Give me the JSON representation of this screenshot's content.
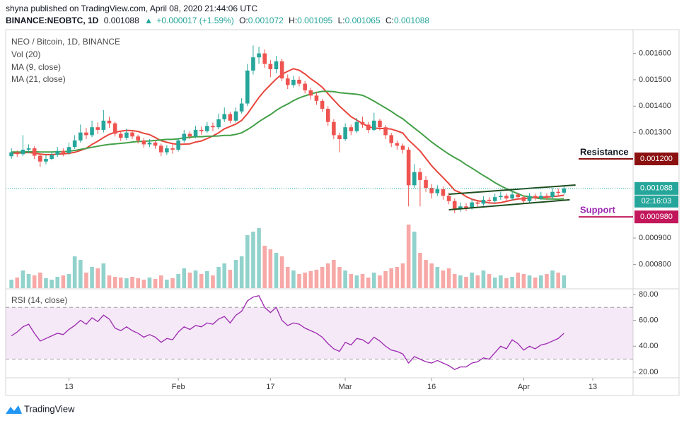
{
  "header": {
    "byline": "shyna published on TradingView.com, April 08, 2020 21:44:06 UTC",
    "symbol": "BINANCE:NEOBTC, 1D",
    "price": "0.001088",
    "arrow": "▲",
    "change": "+0.000017 (+1.59%)",
    "ohlc": [
      {
        "label": "O:",
        "value": "0.001072"
      },
      {
        "label": "H:",
        "value": "0.001095"
      },
      {
        "label": "L:",
        "value": "0.001065"
      },
      {
        "label": "C:",
        "value": "0.001088"
      }
    ]
  },
  "footer": {
    "brand": "TradingView"
  },
  "chart_data": {
    "type": "candlestick",
    "title": "NEO / Bitcoin, 1D, BINANCE",
    "x": [
      "2020-01-03",
      "2020-01-04",
      "2020-01-05",
      "2020-01-06",
      "2020-01-07",
      "2020-01-08",
      "2020-01-09",
      "2020-01-10",
      "2020-01-11",
      "2020-01-12",
      "2020-01-13",
      "2020-01-14",
      "2020-01-15",
      "2020-01-16",
      "2020-01-17",
      "2020-01-18",
      "2020-01-19",
      "2020-01-20",
      "2020-01-21",
      "2020-01-22",
      "2020-01-23",
      "2020-01-24",
      "2020-01-25",
      "2020-01-26",
      "2020-01-27",
      "2020-01-28",
      "2020-01-29",
      "2020-01-30",
      "2020-01-31",
      "2020-02-01",
      "2020-02-02",
      "2020-02-03",
      "2020-02-04",
      "2020-02-05",
      "2020-02-06",
      "2020-02-07",
      "2020-02-08",
      "2020-02-09",
      "2020-02-10",
      "2020-02-11",
      "2020-02-12",
      "2020-02-13",
      "2020-02-14",
      "2020-02-15",
      "2020-02-16",
      "2020-02-17",
      "2020-02-18",
      "2020-02-19",
      "2020-02-20",
      "2020-02-21",
      "2020-02-22",
      "2020-02-23",
      "2020-02-24",
      "2020-02-25",
      "2020-02-26",
      "2020-02-27",
      "2020-02-28",
      "2020-02-29",
      "2020-03-01",
      "2020-03-02",
      "2020-03-03",
      "2020-03-04",
      "2020-03-05",
      "2020-03-06",
      "2020-03-07",
      "2020-03-08",
      "2020-03-09",
      "2020-03-10",
      "2020-03-11",
      "2020-03-12",
      "2020-03-13",
      "2020-03-14",
      "2020-03-15",
      "2020-03-16",
      "2020-03-17",
      "2020-03-18",
      "2020-03-19",
      "2020-03-20",
      "2020-03-21",
      "2020-03-22",
      "2020-03-23",
      "2020-03-24",
      "2020-03-25",
      "2020-03-26",
      "2020-03-27",
      "2020-03-28",
      "2020-03-29",
      "2020-03-30",
      "2020-03-31",
      "2020-04-01",
      "2020-04-02",
      "2020-04-03",
      "2020-04-04",
      "2020-04-05",
      "2020-04-06",
      "2020-04-07",
      "2020-04-08"
    ],
    "open": [
      0.00121,
      0.001225,
      0.001218,
      0.001235,
      0.00124,
      0.001212,
      0.00119,
      0.0012,
      0.001215,
      0.00123,
      0.001222,
      0.001245,
      0.00127,
      0.0013,
      0.00129,
      0.00132,
      0.00131,
      0.001345,
      0.001335,
      0.001295,
      0.00128,
      0.0013,
      0.001285,
      0.00127,
      0.001255,
      0.001262,
      0.00125,
      0.001225,
      0.00124,
      0.001235,
      0.00127,
      0.001295,
      0.001285,
      0.00131,
      0.001305,
      0.001325,
      0.00132,
      0.00135,
      0.00137,
      0.001345,
      0.00138,
      0.00141,
      0.001535,
      0.001585,
      0.0016,
      0.00156,
      0.00154,
      0.00157,
      0.001505,
      0.00148,
      0.0015,
      0.001485,
      0.00146,
      0.00144,
      0.00142,
      0.00139,
      0.00134,
      0.00129,
      0.001275,
      0.00132,
      0.001305,
      0.00134,
      0.00133,
      0.00131,
      0.001345,
      0.00132,
      0.00129,
      0.00126,
      0.00125,
      0.001235,
      0.0011,
      0.00115,
      0.00112,
      0.00109,
      0.00107,
      0.001085,
      0.00106,
      0.00104,
      0.00101,
      0.00102,
      0.001015,
      0.001035,
      0.00103,
      0.001045,
      0.00104,
      0.001055,
      0.00106,
      0.00105,
      0.001065,
      0.001055,
      0.00104,
      0.00106,
      0.00105,
      0.00106,
      0.001055,
      0.001075,
      0.001072
    ],
    "high": [
      0.00124,
      0.001232,
      0.00129,
      0.001255,
      0.001248,
      0.00122,
      0.001215,
      0.001228,
      0.001245,
      0.00124,
      0.001262,
      0.00129,
      0.00133,
      0.001318,
      0.001345,
      0.001338,
      0.001385,
      0.00136,
      0.001342,
      0.001305,
      0.001315,
      0.00131,
      0.001292,
      0.00128,
      0.001275,
      0.00127,
      0.001258,
      0.001252,
      0.001255,
      0.00128,
      0.00131,
      0.001305,
      0.001325,
      0.001322,
      0.00134,
      0.001338,
      0.001372,
      0.001395,
      0.001378,
      0.001395,
      0.00143,
      0.00156,
      0.00163,
      0.001625,
      0.001615,
      0.001575,
      0.00159,
      0.00158,
      0.00152,
      0.001515,
      0.001512,
      0.001495,
      0.00147,
      0.001452,
      0.001428,
      0.0014,
      0.00135,
      0.0013,
      0.001335,
      0.00133,
      0.001355,
      0.00136,
      0.00134,
      0.001375,
      0.001352,
      0.001328,
      0.001298,
      0.00127,
      0.001258,
      0.001245,
      0.00118,
      0.001165,
      0.001135,
      0.001105,
      0.0011,
      0.001095,
      0.001072,
      0.00105,
      0.001035,
      0.001032,
      0.001048,
      0.001045,
      0.001058,
      0.001055,
      0.001068,
      0.001075,
      0.001068,
      0.001078,
      0.001072,
      0.001062,
      0.00107,
      0.001068,
      0.001075,
      0.00107,
      0.00109,
      0.001088,
      0.001095
    ],
    "low": [
      0.0012,
      0.001208,
      0.00121,
      0.001222,
      0.0012,
      0.00117,
      0.00118,
      0.001195,
      0.001208,
      0.00121,
      0.001215,
      0.001238,
      0.001262,
      0.001275,
      0.001282,
      0.001295,
      0.0013,
      0.001318,
      0.001285,
      0.001268,
      0.001272,
      0.001275,
      0.001258,
      0.001242,
      0.001245,
      0.001238,
      0.00121,
      0.001215,
      0.00122,
      0.001228,
      0.001262,
      0.001275,
      0.001278,
      0.001292,
      0.001298,
      0.001305,
      0.001312,
      0.00134,
      0.001335,
      0.001338,
      0.001372,
      0.0014,
      0.00152,
      0.00156,
      0.001545,
      0.00151,
      0.001525,
      0.001495,
      0.001465,
      0.00147,
      0.001475,
      0.001448,
      0.001425,
      0.001405,
      0.001378,
      0.001325,
      0.001275,
      0.001225,
      0.001268,
      0.00129,
      0.001298,
      0.001318,
      0.001298,
      0.001305,
      0.001308,
      0.001275,
      0.001245,
      0.001235,
      0.00122,
      0.00102,
      0.00109,
      0.00102,
      0.001075,
      0.00105,
      0.00106,
      0.001045,
      0.001028,
      0.000995,
      0.001,
      0.001002,
      0.001008,
      0.001018,
      0.001022,
      0.00103,
      0.001032,
      0.001045,
      0.00104,
      0.001042,
      0.001045,
      0.00103,
      0.001035,
      0.001042,
      0.001045,
      0.001045,
      0.00105,
      0.001062,
      0.001065
    ],
    "close": [
      0.001225,
      0.001218,
      0.001235,
      0.00124,
      0.001212,
      0.00119,
      0.0012,
      0.001215,
      0.00123,
      0.001222,
      0.001245,
      0.00127,
      0.0013,
      0.00129,
      0.00132,
      0.00131,
      0.001345,
      0.001335,
      0.001295,
      0.00128,
      0.0013,
      0.001285,
      0.00127,
      0.001255,
      0.001262,
      0.00125,
      0.001225,
      0.00124,
      0.001235,
      0.00127,
      0.001295,
      0.001285,
      0.00131,
      0.001305,
      0.001325,
      0.00132,
      0.00135,
      0.00137,
      0.001345,
      0.00138,
      0.00141,
      0.001535,
      0.001585,
      0.0016,
      0.00156,
      0.00154,
      0.00157,
      0.001505,
      0.00148,
      0.0015,
      0.001485,
      0.00146,
      0.00144,
      0.00142,
      0.00139,
      0.00134,
      0.00129,
      0.001275,
      0.00132,
      0.001305,
      0.00134,
      0.00133,
      0.00131,
      0.001345,
      0.00132,
      0.00129,
      0.00126,
      0.00125,
      0.001235,
      0.0011,
      0.00115,
      0.00112,
      0.00109,
      0.00107,
      0.001085,
      0.00106,
      0.00104,
      0.00101,
      0.00102,
      0.001015,
      0.001035,
      0.00103,
      0.001045,
      0.00104,
      0.001055,
      0.00106,
      0.00105,
      0.001065,
      0.001055,
      0.00104,
      0.00106,
      0.00105,
      0.00106,
      0.001055,
      0.001075,
      0.001071,
      0.001088
    ],
    "up_color": "#26a69a",
    "down_color": "#ef5350",
    "volume": {
      "name": "Vol (20)",
      "lim": [
        0,
        100
      ],
      "values": [
        12,
        15,
        25,
        20,
        18,
        22,
        14,
        12,
        16,
        18,
        20,
        45,
        40,
        22,
        30,
        28,
        35,
        18,
        16,
        15,
        14,
        16,
        14,
        12,
        15,
        13,
        18,
        12,
        14,
        20,
        28,
        22,
        25,
        20,
        24,
        18,
        30,
        35,
        26,
        40,
        45,
        75,
        80,
        85,
        60,
        55,
        50,
        45,
        30,
        25,
        20,
        22,
        24,
        26,
        30,
        35,
        40,
        30,
        25,
        20,
        18,
        20,
        15,
        22,
        18,
        24,
        28,
        30,
        35,
        90,
        80,
        50,
        40,
        35,
        30,
        25,
        28,
        20,
        18,
        16,
        22,
        18,
        25,
        20,
        15,
        18,
        14,
        16,
        22,
        20,
        18,
        15,
        18,
        20,
        25,
        22,
        18
      ]
    },
    "series": [
      {
        "name": "MA (9, close)",
        "color": "#e8453c",
        "values": [
          0.001222,
          0.001222,
          0.001223,
          0.001224,
          0.001222,
          0.001218,
          0.001216,
          0.001216,
          0.001218,
          0.001219,
          0.001221,
          0.001225,
          0.001232,
          0.00124,
          0.001255,
          0.001267,
          0.001281,
          0.001293,
          0.001301,
          0.001305,
          0.001308,
          0.001307,
          0.001304,
          0.001297,
          0.001292,
          0.001281,
          0.001269,
          0.001263,
          0.001258,
          0.001255,
          0.001256,
          0.001257,
          0.001264,
          0.001268,
          0.001277,
          0.001287,
          0.001299,
          0.001314,
          0.001323,
          0.001332,
          0.001346,
          0.001371,
          0.001402,
          0.001433,
          0.001459,
          0.001481,
          0.001503,
          0.001521,
          0.001532,
          0.001542,
          0.001536,
          0.001522,
          0.001504,
          0.001489,
          0.001472,
          0.001447,
          0.001423,
          0.0014,
          0.00138,
          0.00136,
          0.001347,
          0.001334,
          0.001322,
          0.001317,
          0.001315,
          0.001315,
          0.001313,
          0.001306,
          0.001298,
          0.001271,
          0.001251,
          0.00123,
          0.001202,
          0.001174,
          0.001151,
          0.001129,
          0.001106,
          0.001081,
          0.001072,
          0.001057,
          0.001047,
          0.001041,
          0.001038,
          0.001033,
          0.001032,
          0.001034,
          0.001039,
          0.001044,
          0.001048,
          0.001049,
          0.001052,
          0.001053,
          0.001055,
          0.001055,
          0.001057,
          0.001059,
          0.001062
        ]
      },
      {
        "name": "MA (21, close)",
        "color": "#43a047",
        "values": [
          0.001226,
          0.001226,
          0.001226,
          0.001227,
          0.001227,
          0.001226,
          0.001226,
          0.001226,
          0.001227,
          0.001227,
          0.001229,
          0.001232,
          0.001236,
          0.00124,
          0.001244,
          0.001248,
          0.001252,
          0.001255,
          0.001257,
          0.001259,
          0.001261,
          0.001264,
          0.001266,
          0.001267,
          0.001268,
          0.00127,
          0.001272,
          0.001274,
          0.001274,
          0.001276,
          0.00128,
          0.001282,
          0.001284,
          0.001284,
          0.001286,
          0.001286,
          0.001287,
          0.001289,
          0.001289,
          0.001293,
          0.001299,
          0.001311,
          0.001325,
          0.001341,
          0.001355,
          0.001368,
          0.001384,
          0.001397,
          0.001408,
          0.001421,
          0.001431,
          0.001439,
          0.001446,
          0.001452,
          0.001456,
          0.001456,
          0.001455,
          0.001451,
          0.001449,
          0.001447,
          0.001445,
          0.001441,
          0.001431,
          0.001419,
          0.001406,
          0.001393,
          0.00138,
          0.001365,
          0.001352,
          0.001334,
          0.001317,
          0.0013,
          0.001282,
          0.001264,
          0.001248,
          0.001233,
          0.001218,
          0.001205,
          0.001193,
          0.001178,
          0.001165,
          0.001151,
          0.001137,
          0.001124,
          0.00111,
          0.001098,
          0.001087,
          0.001077,
          0.001068,
          0.001059,
          0.001057,
          0.001052,
          0.001049,
          0.001048,
          0.001048,
          0.001047,
          0.001049
        ]
      }
    ],
    "xlim": [
      "2020-01-02",
      "2020-04-20"
    ],
    "xticks": [
      {
        "value": "2020-01-13",
        "label": "13"
      },
      {
        "value": "2020-02-01",
        "label": "Feb"
      },
      {
        "value": "2020-02-17",
        "label": "17"
      },
      {
        "value": "2020-03-01",
        "label": "Mar"
      },
      {
        "value": "2020-03-16",
        "label": "16"
      },
      {
        "value": "2020-04-01",
        "label": "Apr"
      },
      {
        "value": "2020-04-13",
        "label": "13"
      }
    ],
    "ylim": [
      0.00071,
      0.00169
    ],
    "yticks": [
      {
        "value": 0.0016,
        "label": "0.001600"
      },
      {
        "value": 0.0015,
        "label": "0.001500"
      },
      {
        "value": 0.0014,
        "label": "0.001400"
      },
      {
        "value": 0.0013,
        "label": "0.001300"
      },
      {
        "value": 0.0009,
        "label": "0.000900"
      },
      {
        "value": 0.0008,
        "label": "0.000800"
      }
    ],
    "last_price": {
      "value": 0.001088,
      "label": "0.001088",
      "countdown": "02:16:03",
      "color": "#26a69a"
    },
    "levels": [
      {
        "name": "Resistance",
        "value": 0.0012,
        "label": "0.001200",
        "color": "#8b1010",
        "text_color": "#131722"
      },
      {
        "name": "Support",
        "value": 0.00098,
        "label": "0.000980",
        "color": "#c2185b",
        "text_color": "#9c27b0"
      }
    ],
    "channel": [
      {
        "x": [
          "2020-03-19",
          "2020-04-10"
        ],
        "values": [
          0.001066,
          0.001101
        ],
        "color": "#1e4d1e"
      },
      {
        "x": [
          "2020-03-19",
          "2020-04-09"
        ],
        "values": [
          0.001007,
          0.001045
        ],
        "color": "#1e4d1e"
      }
    ],
    "rsi": {
      "name": "RSI (14, close)",
      "color": "#9c27b0",
      "ylim": [
        15.6,
        83.8
      ],
      "bands": [
        30,
        70
      ],
      "yticks": [
        {
          "value": 80,
          "label": "80.00"
        },
        {
          "value": 60,
          "label": "60.00"
        },
        {
          "value": 40,
          "label": "40.00"
        },
        {
          "value": 20,
          "label": "20.00"
        }
      ],
      "values": [
        48,
        51,
        55,
        57,
        50,
        44,
        46,
        48,
        50,
        49,
        53,
        56,
        60,
        57,
        62,
        59,
        64,
        61,
        54,
        52,
        55,
        52,
        50,
        47,
        49,
        47,
        43,
        46,
        45,
        51,
        55,
        53,
        56,
        55,
        58,
        57,
        61,
        63,
        58,
        64,
        67,
        75,
        78,
        79,
        70,
        66,
        70,
        60,
        56,
        58,
        57,
        54,
        52,
        50,
        47,
        42,
        38,
        36,
        43,
        41,
        46,
        45,
        42,
        47,
        44,
        40,
        37,
        36,
        34,
        27,
        32,
        30,
        28,
        27,
        29,
        27,
        25,
        22,
        24,
        24,
        27,
        28,
        31,
        30,
        35,
        40,
        38,
        45,
        42,
        37,
        40,
        38,
        41,
        42,
        44,
        46,
        50
      ]
    }
  }
}
